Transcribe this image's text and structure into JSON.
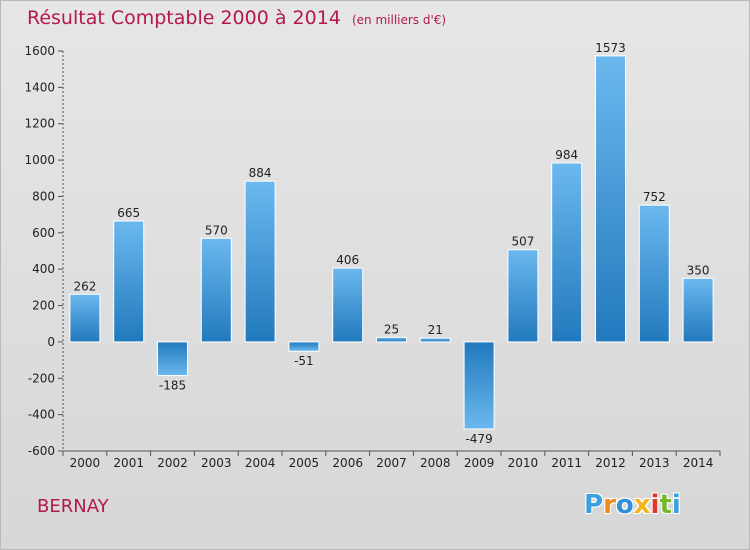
{
  "title": "Résultat Comptable 2000 à 2014",
  "unit": "(en milliers d'€)",
  "commune": "BERNAY",
  "logo": {
    "letters": [
      "P",
      "r",
      "o",
      "x",
      "i",
      "t",
      "i"
    ],
    "colors": [
      "#3aa0e0",
      "#f08a1c",
      "#2f8fd8",
      "#f2b51c",
      "#e2352a",
      "#76b82a",
      "#3aa0e0"
    ]
  },
  "colors": {
    "accent": "#b3184f",
    "bar": "#3d98da",
    "bar_light": "#66b4ec",
    "bar_dark": "#1f78bd"
  },
  "chart_data": {
    "type": "bar",
    "title": "Résultat Comptable 2000 à 2014",
    "subtitle": "(en milliers d'€)",
    "categories": [
      "2000",
      "2001",
      "2002",
      "2003",
      "2004",
      "2005",
      "2006",
      "2007",
      "2008",
      "2009",
      "2010",
      "2011",
      "2012",
      "2013",
      "2014"
    ],
    "values": [
      262,
      665,
      -185,
      570,
      884,
      -51,
      406,
      25,
      21,
      -479,
      507,
      984,
      1573,
      752,
      350
    ],
    "ylim": [
      -600,
      1600
    ],
    "yticks": [
      -600,
      -400,
      -200,
      0,
      200,
      400,
      600,
      800,
      1000,
      1200,
      1400,
      1600
    ],
    "grid": false
  }
}
